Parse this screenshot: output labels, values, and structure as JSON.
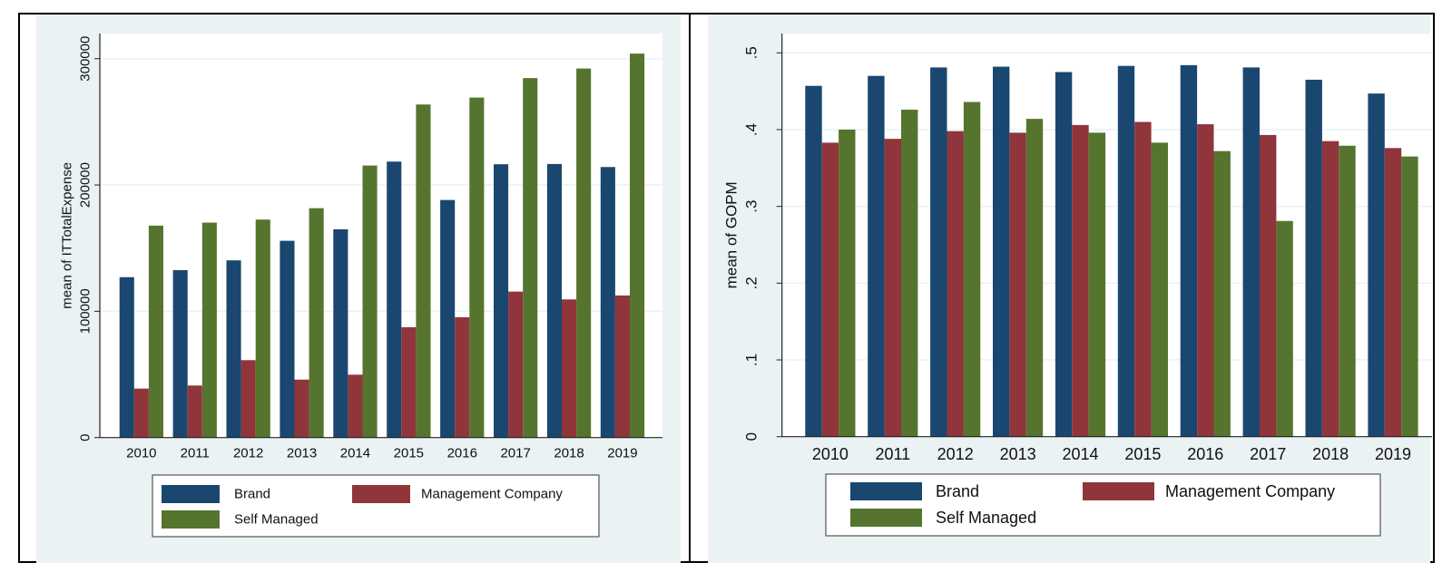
{
  "colors": {
    "background": "#eaf2f3",
    "plot_background": "#ffffff",
    "gridline": "#eaf2f3",
    "brand": "#1a476f",
    "management_company": "#90353b",
    "self_managed": "#55752f"
  },
  "chart_data": [
    {
      "type": "bar",
      "title": "",
      "xlabel": "",
      "ylabel": "mean of ITTotalExpense",
      "ylim": [
        0,
        320000
      ],
      "yticks": [
        0,
        100000,
        200000,
        300000
      ],
      "ytick_labels": [
        "0",
        "100000",
        "200000",
        "300000"
      ],
      "grid": true,
      "legend_position": "bottom",
      "categories": [
        "2010",
        "2011",
        "2012",
        "2013",
        "2014",
        "2015",
        "2016",
        "2017",
        "2018",
        "2019"
      ],
      "series": [
        {
          "name": "Brand",
          "color_key": "brand",
          "values": [
            127000,
            132600,
            140300,
            155800,
            164900,
            218500,
            188100,
            216400,
            216600,
            214200
          ]
        },
        {
          "name": "Management Company",
          "color_key": "management_company",
          "values": [
            38800,
            41200,
            61300,
            45900,
            49800,
            87400,
            95300,
            115600,
            109400,
            112500
          ]
        },
        {
          "name": "Self Managed",
          "color_key": "self_managed",
          "values": [
            167800,
            170200,
            172600,
            181600,
            215400,
            263700,
            269200,
            284600,
            292200,
            304000
          ]
        }
      ]
    },
    {
      "type": "bar",
      "title": "",
      "xlabel": "",
      "ylabel": "mean of GOPM",
      "ylim": [
        0,
        0.525
      ],
      "yticks": [
        0,
        0.1,
        0.2,
        0.3,
        0.4,
        0.5
      ],
      "ytick_labels": [
        "0",
        ".1",
        ".2",
        ".3",
        ".4",
        ".5"
      ],
      "grid": true,
      "legend_position": "bottom",
      "categories": [
        "2010",
        "2011",
        "2012",
        "2013",
        "2014",
        "2015",
        "2016",
        "2017",
        "2018",
        "2019"
      ],
      "series": [
        {
          "name": "Brand",
          "color_key": "brand",
          "values": [
            0.457,
            0.47,
            0.481,
            0.482,
            0.475,
            0.483,
            0.484,
            0.481,
            0.465,
            0.447
          ]
        },
        {
          "name": "Management Company",
          "color_key": "management_company",
          "values": [
            0.383,
            0.388,
            0.398,
            0.396,
            0.406,
            0.41,
            0.407,
            0.393,
            0.385,
            0.376
          ]
        },
        {
          "name": "Self Managed",
          "color_key": "self_managed",
          "values": [
            0.4,
            0.426,
            0.436,
            0.414,
            0.396,
            0.383,
            0.372,
            0.281,
            0.379,
            0.365
          ]
        }
      ]
    }
  ]
}
